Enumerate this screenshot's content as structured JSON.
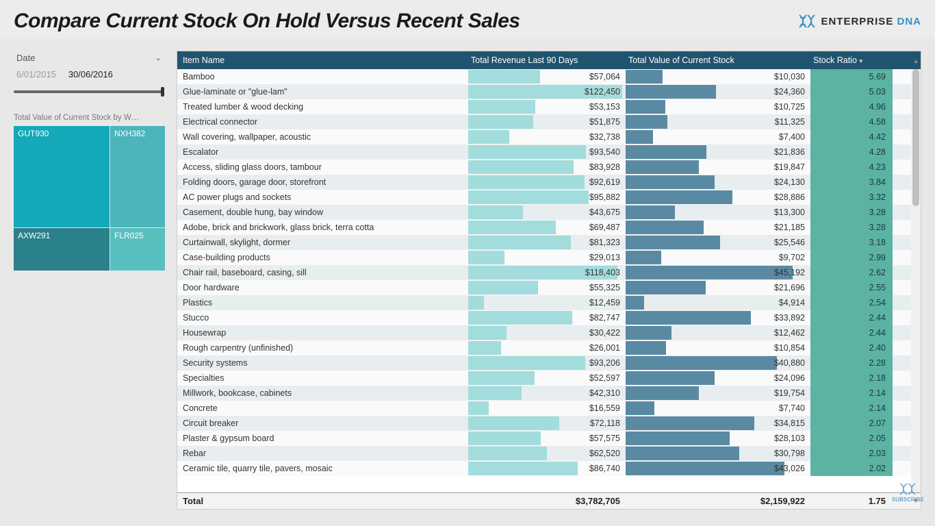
{
  "page": {
    "title": "Compare Current Stock On Hold Versus Recent Sales",
    "brand_prefix": "ENTERPRISE",
    "brand_suffix": "DNA",
    "bg_color": "#e8e8e8"
  },
  "logo": {
    "dna_color": "#3a8fc7"
  },
  "slicer": {
    "label": "Date",
    "date_start": "6/01/2015",
    "date_end": "30/06/2016"
  },
  "treemap": {
    "title": "Total Value of Current Stock by W…",
    "tiles": [
      {
        "label": "GUT930",
        "color": "#14a9b8",
        "cls": "tm-a"
      },
      {
        "label": "NXH382",
        "color": "#4cb4bb",
        "cls": "tm-b"
      },
      {
        "label": "AXW291",
        "color": "#2a808b",
        "cls": "tm-c"
      },
      {
        "label": "FLR025",
        "color": "#58bfbf",
        "cls": "tm-d"
      }
    ]
  },
  "table": {
    "header_bg": "#21556f",
    "header_text": "#ffffff",
    "rev_bar_color": "#a3dcdc",
    "stk_bar_color": "#5a8aa3",
    "ratio_cell_color": "#5cb3a3",
    "rev_max": 125000,
    "stk_max": 50000,
    "columns": {
      "name": "Item Name",
      "revenue": "Total Revenue Last 90 Days",
      "stock": "Total Value of Current Stock",
      "ratio": "Stock Ratio"
    },
    "rows": [
      {
        "name": "Bamboo",
        "revenue": 57064,
        "stock": 10030,
        "ratio": 5.69
      },
      {
        "name": "Glue-laminate or \"glue-lam\"",
        "revenue": 122450,
        "stock": 24360,
        "ratio": 5.03
      },
      {
        "name": "Treated lumber & wood decking",
        "revenue": 53153,
        "stock": 10725,
        "ratio": 4.96
      },
      {
        "name": "Electrical connector",
        "revenue": 51875,
        "stock": 11325,
        "ratio": 4.58
      },
      {
        "name": "Wall covering, wallpaper, acoustic",
        "revenue": 32738,
        "stock": 7400,
        "ratio": 4.42
      },
      {
        "name": "Escalator",
        "revenue": 93540,
        "stock": 21836,
        "ratio": 4.28
      },
      {
        "name": "Access, sliding glass doors, tambour",
        "revenue": 83928,
        "stock": 19847,
        "ratio": 4.23
      },
      {
        "name": "Folding doors, garage door, storefront",
        "revenue": 92619,
        "stock": 24130,
        "ratio": 3.84
      },
      {
        "name": "AC power plugs and sockets",
        "revenue": 95882,
        "stock": 28886,
        "ratio": 3.32
      },
      {
        "name": "Casement, double hung, bay window",
        "revenue": 43675,
        "stock": 13300,
        "ratio": 3.28
      },
      {
        "name": "Adobe, brick and brickwork, glass brick, terra cotta",
        "revenue": 69487,
        "stock": 21185,
        "ratio": 3.28
      },
      {
        "name": "Curtainwall, skylight, dormer",
        "revenue": 81323,
        "stock": 25546,
        "ratio": 3.18
      },
      {
        "name": "Case-building products",
        "revenue": 29013,
        "stock": 9702,
        "ratio": 2.99
      },
      {
        "name": "Chair rail, baseboard, casing, sill",
        "revenue": 118403,
        "stock": 45192,
        "ratio": 2.62
      },
      {
        "name": "Door hardware",
        "revenue": 55325,
        "stock": 21696,
        "ratio": 2.55
      },
      {
        "name": "Plastics",
        "revenue": 12459,
        "stock": 4914,
        "ratio": 2.54
      },
      {
        "name": "Stucco",
        "revenue": 82747,
        "stock": 33892,
        "ratio": 2.44
      },
      {
        "name": "Housewrap",
        "revenue": 30422,
        "stock": 12462,
        "ratio": 2.44
      },
      {
        "name": "Rough carpentry (unfinished)",
        "revenue": 26001,
        "stock": 10854,
        "ratio": 2.4
      },
      {
        "name": "Security systems",
        "revenue": 93206,
        "stock": 40880,
        "ratio": 2.28
      },
      {
        "name": "Specialties",
        "revenue": 52597,
        "stock": 24096,
        "ratio": 2.18
      },
      {
        "name": "Millwork, bookcase, cabinets",
        "revenue": 42310,
        "stock": 19754,
        "ratio": 2.14
      },
      {
        "name": "Concrete",
        "revenue": 16559,
        "stock": 7740,
        "ratio": 2.14
      },
      {
        "name": "Circuit breaker",
        "revenue": 72118,
        "stock": 34815,
        "ratio": 2.07
      },
      {
        "name": "Plaster & gypsum board",
        "revenue": 57575,
        "stock": 28103,
        "ratio": 2.05
      },
      {
        "name": "Rebar",
        "revenue": 62520,
        "stock": 30798,
        "ratio": 2.03
      },
      {
        "name": "Ceramic tile, quarry tile, pavers, mosaic",
        "revenue": 86740,
        "stock": 43026,
        "ratio": 2.02
      }
    ],
    "totals": {
      "label": "Total",
      "revenue": "$3,782,705",
      "stock": "$2,159,922",
      "ratio": "1.75"
    }
  },
  "subscribe": "SUBSCRIBE"
}
